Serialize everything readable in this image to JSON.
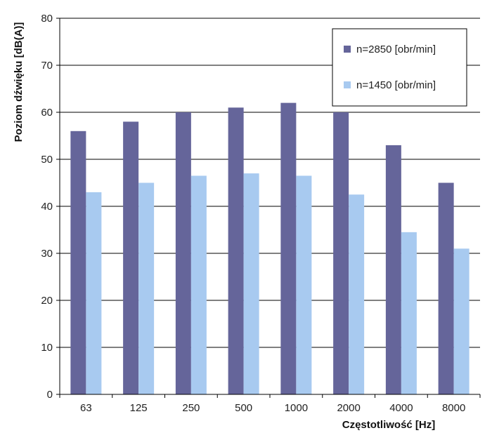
{
  "chart_data": {
    "type": "bar",
    "title": "",
    "xlabel": "Częstotliwość [Hz]",
    "ylabel": "Poziom dźwięku [dB(A)]",
    "ylim": [
      0,
      80
    ],
    "yticks": [
      "0",
      "10",
      "20",
      "30",
      "40",
      "50",
      "60",
      "70",
      "80"
    ],
    "grid": true,
    "legend_position": "top-right",
    "categories": [
      "63",
      "125",
      "250",
      "500",
      "1000",
      "2000",
      "4000",
      "8000"
    ],
    "series": [
      {
        "name": "n=2850 [obr/min]",
        "color": "#65659a",
        "values": [
          56,
          58,
          60,
          61,
          62,
          60,
          53,
          45
        ]
      },
      {
        "name": "n=1450 [obr/min]",
        "color": "#a8caf0",
        "values": [
          43,
          45,
          46.5,
          47,
          46.5,
          42.5,
          34.5,
          31
        ]
      }
    ]
  }
}
